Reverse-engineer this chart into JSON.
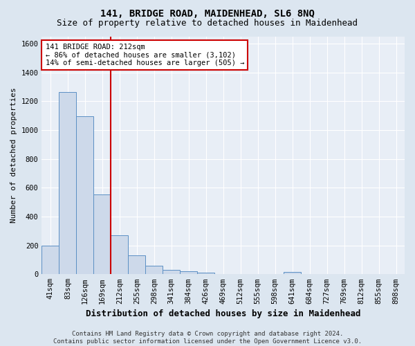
{
  "title": "141, BRIDGE ROAD, MAIDENHEAD, SL6 8NQ",
  "subtitle": "Size of property relative to detached houses in Maidenhead",
  "xlabel": "Distribution of detached houses by size in Maidenhead",
  "ylabel": "Number of detached properties",
  "footer_line1": "Contains HM Land Registry data © Crown copyright and database right 2024.",
  "footer_line2": "Contains public sector information licensed under the Open Government Licence v3.0.",
  "bin_labels": [
    "41sqm",
    "83sqm",
    "126sqm",
    "169sqm",
    "212sqm",
    "255sqm",
    "298sqm",
    "341sqm",
    "384sqm",
    "426sqm",
    "469sqm",
    "512sqm",
    "555sqm",
    "598sqm",
    "641sqm",
    "684sqm",
    "727sqm",
    "769sqm",
    "812sqm",
    "855sqm",
    "898sqm"
  ],
  "bar_values": [
    196,
    1265,
    1095,
    555,
    270,
    130,
    60,
    32,
    18,
    12,
    0,
    0,
    0,
    0,
    15,
    0,
    0,
    0,
    0,
    0,
    0
  ],
  "bar_color": "#cdd9ea",
  "bar_edge_color": "#5b8fc4",
  "vline_color": "#cc0000",
  "vline_index": 4,
  "annotation_line1": "141 BRIDGE ROAD: 212sqm",
  "annotation_line2": "← 86% of detached houses are smaller (3,102)",
  "annotation_line3": "14% of semi-detached houses are larger (505) →",
  "annotation_box_edge_color": "#cc0000",
  "ylim": [
    0,
    1650
  ],
  "yticks": [
    0,
    200,
    400,
    600,
    800,
    1000,
    1200,
    1400,
    1600
  ],
  "bg_color": "#dce6f0",
  "plot_bg_color": "#e8eef6",
  "grid_color": "#ffffff",
  "title_fontsize": 10,
  "subtitle_fontsize": 9,
  "xlabel_fontsize": 9,
  "ylabel_fontsize": 8,
  "tick_fontsize": 7.5,
  "annotation_fontsize": 7.5,
  "footer_fontsize": 6.5
}
